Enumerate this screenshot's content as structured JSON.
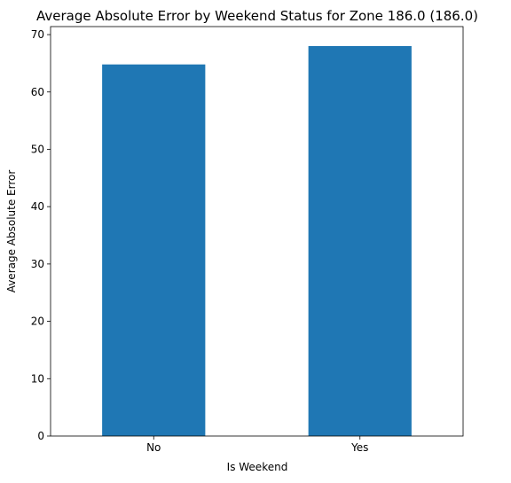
{
  "chart_data": {
    "type": "bar",
    "title": "Average Absolute Error by Weekend Status for Zone 186.0 (186.0)",
    "xlabel": "Is Weekend",
    "ylabel": "Average Absolute Error",
    "categories": [
      "No",
      "Yes"
    ],
    "values": [
      64.8,
      68.0
    ],
    "ylim": [
      0,
      71.4
    ],
    "yticks": [
      0,
      10,
      20,
      30,
      40,
      50,
      60,
      70
    ],
    "bar_color": "#1f77b4",
    "grid": false,
    "legend": "none"
  }
}
